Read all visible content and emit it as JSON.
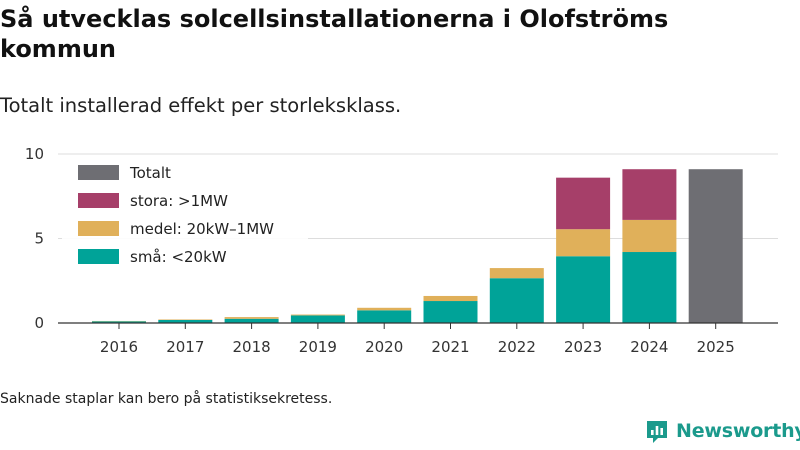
{
  "chart_data": {
    "type": "bar",
    "stacked": true,
    "title": "Så utvecklas solcellsinstallationerna i Olofströms kommun",
    "subtitle": "Totalt installerad effekt per storleksklass.",
    "categories": [
      "2016",
      "2017",
      "2018",
      "2019",
      "2020",
      "2021",
      "2022",
      "2023",
      "2024",
      "2025"
    ],
    "series": [
      {
        "name": "små: <20kW",
        "color": "#00a398",
        "values": [
          0.1,
          0.18,
          0.25,
          0.45,
          0.75,
          1.3,
          2.65,
          3.95,
          4.2,
          null
        ]
      },
      {
        "name": "medel: 20kW–1MW",
        "color": "#e0b05a",
        "values": [
          0.02,
          0.03,
          0.1,
          0.05,
          0.15,
          0.3,
          0.6,
          1.6,
          1.9,
          null
        ]
      },
      {
        "name": "stora: >1MW",
        "color": "#a63f69",
        "values": [
          null,
          null,
          null,
          null,
          null,
          null,
          null,
          3.05,
          3.0,
          null
        ]
      },
      {
        "name": "Totalt",
        "color": "#6e6e73",
        "values": [
          null,
          null,
          null,
          null,
          null,
          null,
          null,
          null,
          null,
          9.1
        ]
      }
    ],
    "legend_order": [
      "Totalt",
      "stora: >1MW",
      "medel: 20kW–1MW",
      "små: <20kW"
    ],
    "legend_position": "top-left",
    "yticks": [
      0,
      5,
      10
    ],
    "ylim": [
      0,
      10
    ],
    "xlabel": "",
    "ylabel": "",
    "grid": true
  },
  "footer": {
    "note": "Saknade staplar kan bero på statistiksekretess.",
    "brand": "Newsworthy"
  }
}
